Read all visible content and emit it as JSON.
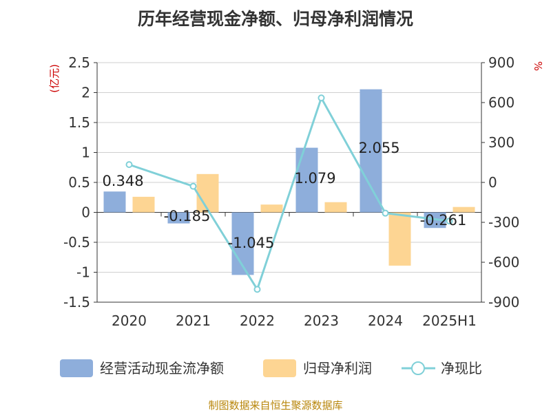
{
  "title": "历年经营现金净额、归母净利润情况",
  "source": "制图数据来自恒生聚源数据库",
  "chart_data": {
    "type": "bar",
    "categories": [
      "2020",
      "2021",
      "2022",
      "2023",
      "2024",
      "2025H1"
    ],
    "series": [
      {
        "name": "经营活动现金流净额",
        "type": "bar",
        "axis": "left",
        "color": "#8eaedb",
        "values": [
          0.348,
          -0.185,
          -1.045,
          1.079,
          2.055,
          -0.261
        ],
        "labels": [
          "0.348",
          "-0.185",
          "-1.045",
          "1.079",
          "2.055",
          "-0.261"
        ]
      },
      {
        "name": "归母净利润",
        "type": "bar",
        "axis": "left",
        "color": "#fdd593",
        "values": [
          0.26,
          0.64,
          0.13,
          0.17,
          -0.89,
          0.09
        ]
      },
      {
        "name": "净现比",
        "type": "line",
        "axis": "right",
        "color": "#80d0d8",
        "values": [
          133.8,
          -28.9,
          -803.8,
          634.7,
          -231.0,
          -290.0
        ]
      }
    ],
    "y_left": {
      "label": "(亿元)",
      "ylim": [
        -1.5,
        2.5
      ],
      "ticks": [
        -1.5,
        -1,
        -0.5,
        0,
        0.5,
        1,
        1.5,
        2,
        2.5
      ],
      "tick_labels": [
        "-1.5",
        "-1",
        "-0.5",
        "0",
        "0.5",
        "1",
        "1.5",
        "2",
        "2.5"
      ]
    },
    "y_right": {
      "label": "%",
      "ylim": [
        -900,
        900
      ],
      "ticks": [
        -900,
        -600,
        -300,
        0,
        300,
        600,
        900
      ],
      "tick_labels": [
        "-900",
        "-600",
        "-300",
        "0",
        "300",
        "600",
        "900"
      ]
    },
    "grid": true,
    "legend": "bottom"
  }
}
